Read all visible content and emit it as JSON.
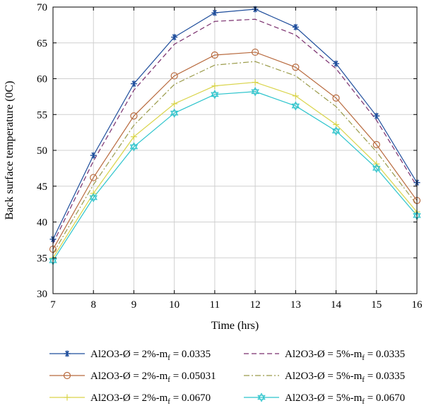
{
  "chart_data": {
    "type": "line",
    "title": "",
    "xlabel": "Time (hrs)",
    "ylabel": "Back surface temperature (0C)",
    "xlim": [
      7,
      16
    ],
    "ylim": [
      30,
      70
    ],
    "x_ticks": [
      "7",
      "8",
      "9",
      "10",
      "11",
      "12",
      "13",
      "14",
      "15",
      "16"
    ],
    "y_ticks": [
      "30",
      "35",
      "40",
      "45",
      "50",
      "55",
      "60",
      "65",
      "70"
    ],
    "grid": true,
    "legend_position": "bottom, outside plot, 2 columns",
    "x": [
      7,
      8,
      9,
      10,
      11,
      12,
      13,
      14,
      15,
      16
    ],
    "series": [
      {
        "name": "Al2O3-Ø = 2%-m",
        "name_sub": "f",
        "name_suffix": " = 0.0335",
        "color": "#1f4e9c",
        "line": "solid",
        "marker": "asterisk",
        "values": [
          37.6,
          49.3,
          59.3,
          65.8,
          69.2,
          69.7,
          67.2,
          62.1,
          54.8,
          45.5
        ]
      },
      {
        "name": "Al2O3-Ø = 5%-m",
        "name_sub": "f",
        "name_suffix": " = 0.0335",
        "color": "#7a2f6e",
        "line": "dashed",
        "marker": "none",
        "values": [
          37.0,
          48.5,
          58.4,
          64.8,
          68.0,
          68.3,
          66.1,
          61.4,
          54.2,
          45.0
        ]
      },
      {
        "name": "Al2O3-Ø = 2%-m",
        "name_sub": "f",
        "name_suffix": " = 0.05031",
        "color": "#b86a3e",
        "line": "solid",
        "marker": "circle",
        "values": [
          36.2,
          46.2,
          54.8,
          60.4,
          63.3,
          63.7,
          61.6,
          57.3,
          50.8,
          43.0
        ]
      },
      {
        "name": "Al2O3-Ø = 5%-m",
        "name_sub": "f",
        "name_suffix": " = 0.0335",
        "color": "#9a9b4a",
        "line": "dashdot",
        "marker": "none",
        "values": [
          35.6,
          45.2,
          53.5,
          59.2,
          61.9,
          62.4,
          60.4,
          56.1,
          49.8,
          42.4
        ]
      },
      {
        "name": "Al2O3-Ø = 2%-m",
        "name_sub": "f",
        "name_suffix": " = 0.0670",
        "color": "#d9d44a",
        "line": "solid",
        "marker": "plus",
        "values": [
          35.0,
          44.0,
          51.9,
          56.5,
          59.0,
          59.5,
          57.6,
          53.6,
          48.1,
          41.4
        ]
      },
      {
        "name": "Al2O3-Ø = 5%-m",
        "name_sub": "f",
        "name_suffix": " = 0.0670",
        "color": "#2cc4cc",
        "line": "solid",
        "marker": "hexagram",
        "values": [
          34.6,
          43.4,
          50.5,
          55.2,
          57.8,
          58.2,
          56.2,
          52.7,
          47.5,
          40.9
        ]
      }
    ]
  }
}
